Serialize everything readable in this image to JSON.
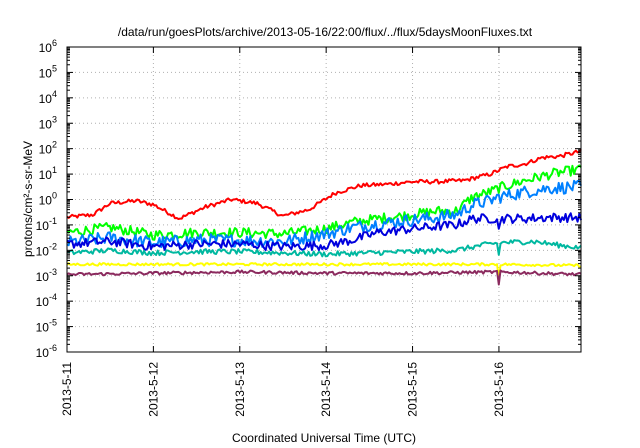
{
  "chart_data": {
    "type": "line",
    "title": "/data/run/goesPlots/archive/2013-05-16/22:00/flux/../flux/5daysMoonFluxes.txt",
    "xlabel": "Coordinated Universal Time (UTC)",
    "ylabel": "protons/cm²-s-sr-MeV",
    "y_scale": "log",
    "ylim_exponents": [
      -6,
      6
    ],
    "y_ticks": [
      {
        "base": "10",
        "exp": "-6"
      },
      {
        "base": "10",
        "exp": "-5"
      },
      {
        "base": "10",
        "exp": "-4"
      },
      {
        "base": "10",
        "exp": "-3"
      },
      {
        "base": "10",
        "exp": "-2"
      },
      {
        "base": "10",
        "exp": "-1"
      },
      {
        "base": "10",
        "exp": "0"
      },
      {
        "base": "10",
        "exp": "1"
      },
      {
        "base": "10",
        "exp": "2"
      },
      {
        "base": "10",
        "exp": "3"
      },
      {
        "base": "10",
        "exp": "4"
      },
      {
        "base": "10",
        "exp": "5"
      },
      {
        "base": "10",
        "exp": "6"
      }
    ],
    "x_ticks": [
      "2013-5-11",
      "2013-5-12",
      "2013-5-13",
      "2013-5-14",
      "2013-5-15",
      "2013-5-16"
    ],
    "xlim_days": [
      0,
      5.95
    ],
    "grid": true,
    "series": [
      {
        "color": "#ff0000",
        "x": [
          0,
          0.3,
          0.5,
          0.8,
          1.0,
          1.3,
          1.6,
          1.9,
          2.2,
          2.5,
          2.8,
          3.1,
          3.4,
          3.7,
          4.0,
          4.3,
          4.6,
          4.9,
          5.1,
          5.3,
          5.5,
          5.7,
          5.95
        ],
        "log10_values": [
          -0.7,
          -0.6,
          -0.15,
          -0.05,
          -0.2,
          -0.75,
          -0.3,
          0.0,
          -0.15,
          -0.65,
          -0.4,
          0.25,
          0.55,
          0.6,
          0.7,
          0.7,
          0.75,
          1.0,
          1.3,
          1.4,
          1.65,
          1.7,
          1.9
        ],
        "noise": 0.08
      },
      {
        "color": "#00ff00",
        "x": [
          0,
          0.5,
          1.0,
          1.5,
          2.0,
          2.5,
          3.0,
          3.3,
          3.6,
          4.0,
          4.3,
          4.5,
          4.7,
          4.9,
          5.0,
          5.3,
          5.6,
          5.95
        ],
        "log10_values": [
          -1.3,
          -1.1,
          -1.4,
          -1.3,
          -1.3,
          -1.35,
          -1.15,
          -0.9,
          -0.75,
          -0.6,
          -0.45,
          -0.45,
          0.1,
          0.3,
          0.45,
          0.75,
          1.0,
          1.2
        ],
        "noise": 0.2
      },
      {
        "color": "#0080ff",
        "x": [
          0,
          0.5,
          1.0,
          1.5,
          2.0,
          2.5,
          3.0,
          3.3,
          3.6,
          4.0,
          4.3,
          4.5,
          4.7,
          4.9,
          5.0,
          5.3,
          5.6,
          5.95
        ],
        "log10_values": [
          -1.7,
          -1.5,
          -1.7,
          -1.6,
          -1.6,
          -1.65,
          -1.35,
          -1.1,
          -0.95,
          -0.8,
          -0.7,
          -0.6,
          -0.2,
          -0.05,
          0.1,
          0.3,
          0.45,
          0.5
        ],
        "noise": 0.25
      },
      {
        "color": "#0000dd",
        "x": [
          0,
          0.5,
          1.0,
          1.5,
          2.0,
          2.5,
          3.0,
          3.3,
          3.6,
          4.0,
          4.3,
          4.5,
          4.7,
          5.0,
          5.3,
          5.6,
          5.95
        ],
        "log10_values": [
          -1.75,
          -1.65,
          -1.85,
          -1.75,
          -1.75,
          -1.85,
          -1.8,
          -1.6,
          -1.3,
          -1.15,
          -1.05,
          -1.0,
          -0.75,
          -0.75,
          -0.75,
          -0.7,
          -0.72
        ],
        "noise": 0.18
      },
      {
        "color": "#00b8a0",
        "x": [
          0,
          0.5,
          1.0,
          1.5,
          2.0,
          2.5,
          3.0,
          3.5,
          4.0,
          4.5,
          4.8,
          5.0,
          5.4,
          5.7,
          5.95
        ],
        "log10_values": [
          -2.1,
          -2.0,
          -2.1,
          -2.05,
          -2.05,
          -2.1,
          -2.15,
          -2.1,
          -2.05,
          -2.0,
          -1.8,
          -1.7,
          -1.65,
          -1.8,
          -1.9
        ],
        "noise": 0.1
      },
      {
        "color": "#ffff00",
        "x": [
          0,
          1.0,
          2.0,
          3.0,
          4.0,
          5.0,
          5.95
        ],
        "log10_values": [
          -2.55,
          -2.55,
          -2.55,
          -2.55,
          -2.55,
          -2.55,
          -2.6
        ],
        "noise": 0.05
      },
      {
        "color": "#8b2a5e",
        "x": [
          0,
          1.0,
          2.0,
          3.0,
          4.0,
          5.0,
          5.95
        ],
        "log10_values": [
          -2.95,
          -2.9,
          -2.85,
          -2.9,
          -2.9,
          -2.85,
          -2.95
        ],
        "noise": 0.06
      }
    ]
  }
}
